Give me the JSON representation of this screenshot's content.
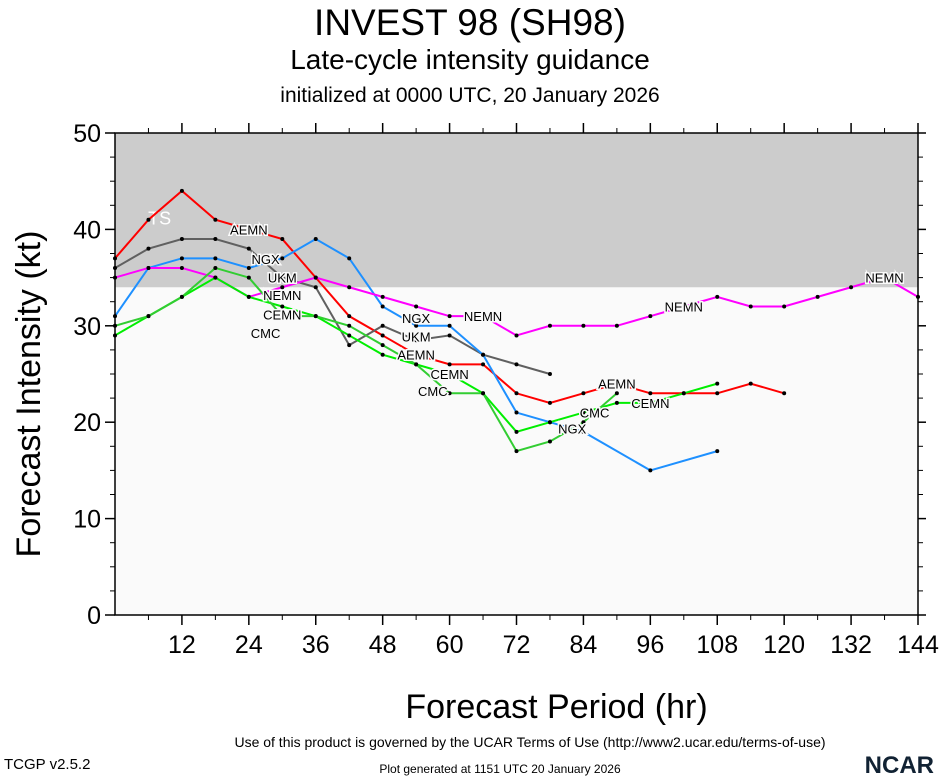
{
  "header": {
    "title": "INVEST 98 (SH98)",
    "subtitle": "Late-cycle intensity guidance",
    "init": "initialized at 0000 UTC, 20 January 2026"
  },
  "footer": {
    "terms": "Use of this product is governed by the UCAR Terms of Use (http://www2.ucar.edu/terms-of-use)",
    "generated": "Plot generated at 1151 UTC   20 January 2026",
    "version": "TCGP v2.5.2",
    "logo": "NCAR"
  },
  "chart_data": {
    "type": "line",
    "xlabel": "Forecast Period (hr)",
    "ylabel": "Forecast Intensity (kt)",
    "xlim": [
      0,
      144
    ],
    "ylim": [
      0,
      50
    ],
    "xticks": [
      12,
      24,
      36,
      48,
      60,
      72,
      84,
      96,
      108,
      120,
      132,
      144
    ],
    "yticks": [
      0,
      10,
      20,
      30,
      40,
      50
    ],
    "band": {
      "label": "TS",
      "from": 34,
      "to": 50,
      "color": "#cccccc"
    },
    "background": "#fafafa",
    "series": [
      {
        "name": "AEMN",
        "color": "#ff0000",
        "x": [
          0,
          6,
          12,
          18,
          24,
          30,
          36,
          42,
          48,
          54,
          60,
          66,
          72,
          78,
          84,
          90,
          96,
          102,
          108,
          114,
          120
        ],
        "values": [
          37,
          41,
          44,
          41,
          40,
          39,
          35,
          31,
          29,
          27,
          26,
          26,
          23,
          22,
          23,
          24,
          23,
          23,
          23,
          24,
          23
        ],
        "label_at": [
          24,
          54,
          90
        ]
      },
      {
        "name": "UKM",
        "color": "#606060",
        "x": [
          0,
          6,
          12,
          18,
          24,
          30,
          36,
          42,
          48,
          54,
          60,
          66,
          72,
          78
        ],
        "values": [
          36,
          38,
          39,
          39,
          38,
          35,
          34,
          28,
          30,
          28.5,
          29,
          27,
          26,
          25
        ],
        "label_at": [
          30,
          54
        ]
      },
      {
        "name": "NGX",
        "color": "#1e90ff",
        "x": [
          0,
          6,
          12,
          18,
          24,
          30,
          36,
          42,
          48,
          54,
          60,
          66,
          72,
          78,
          84,
          96,
          108
        ],
        "values": [
          31,
          36,
          37,
          37,
          36,
          37,
          39,
          37,
          32,
          30,
          30,
          27,
          21,
          20,
          19,
          15,
          17
        ],
        "label_at": [
          27,
          54,
          82
        ]
      },
      {
        "name": "NEMN",
        "color": "#ff00ff",
        "x": [
          0,
          6,
          12,
          18,
          24,
          30,
          36,
          42,
          48,
          54,
          60,
          66,
          72,
          78,
          84,
          90,
          96,
          102,
          108,
          114,
          120,
          126,
          132,
          138,
          144
        ],
        "values": [
          35,
          36,
          36,
          35,
          33,
          34,
          35,
          34,
          33,
          32,
          31,
          31,
          29,
          30,
          30,
          30,
          31,
          32,
          33,
          32,
          32,
          33,
          34,
          35,
          33
        ],
        "label_at": [
          30,
          66,
          102,
          138
        ]
      },
      {
        "name": "CEMN",
        "color": "#00ee00",
        "x": [
          0,
          6,
          12,
          18,
          24,
          30,
          36,
          42,
          48,
          54,
          60,
          66,
          72,
          78,
          84,
          90,
          96,
          102,
          108
        ],
        "values": [
          29,
          31,
          33,
          35,
          33,
          32,
          31,
          29,
          27,
          26,
          25,
          23,
          19,
          20,
          21,
          22,
          22,
          23,
          24
        ],
        "label_at": [
          30,
          60,
          96
        ]
      },
      {
        "name": "CMC",
        "color": "#32cd32",
        "x": [
          0,
          6,
          12,
          18,
          24,
          30,
          36,
          42,
          48,
          54,
          60,
          66,
          72,
          78,
          84,
          90
        ],
        "values": [
          30,
          31,
          33,
          36,
          35,
          31,
          31,
          30,
          28,
          26,
          23,
          23,
          17,
          18,
          20,
          23
        ],
        "label_at": [
          27,
          57,
          86
        ]
      }
    ]
  }
}
